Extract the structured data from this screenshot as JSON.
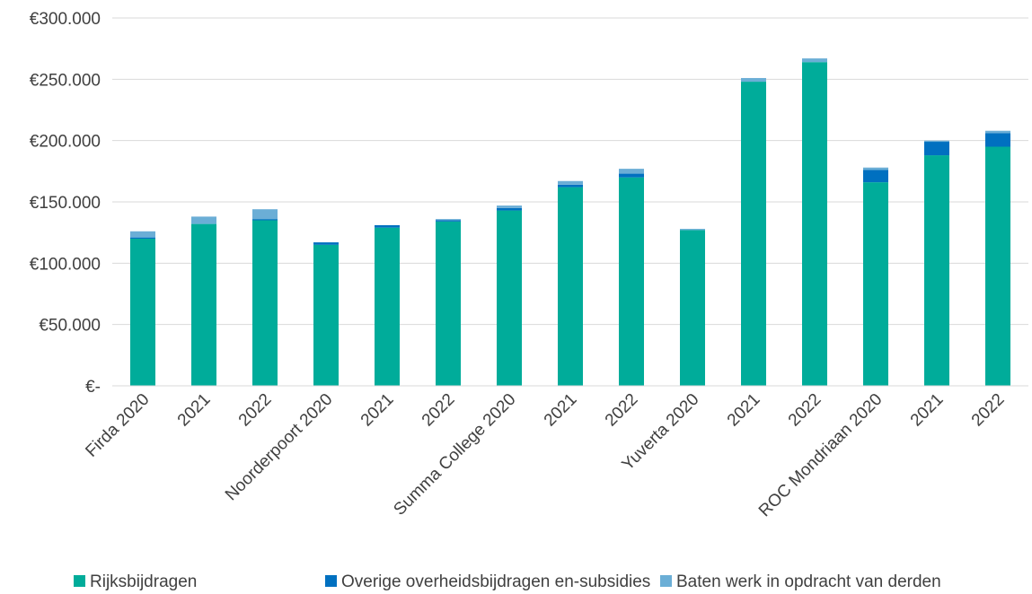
{
  "chart_data": {
    "type": "bar",
    "stacked": true,
    "categories": [
      "Firda 2020",
      "2021",
      "2022",
      "Noorderpoort 2020",
      "2021",
      "2022",
      "Summa College 2020",
      "2021",
      "2022",
      "Yuverta 2020",
      "2021",
      "2022",
      "ROC Mondriaan 2020",
      "2021",
      "2022"
    ],
    "series": [
      {
        "name": "Rijksbijdragen",
        "color": "#00AC9A",
        "values": [
          120000,
          132000,
          135000,
          115000,
          129000,
          134000,
          143000,
          162000,
          170000,
          127000,
          248000,
          264000,
          166000,
          188000,
          195000
        ]
      },
      {
        "name": "Overige overheidsbijdragen en-subsidies",
        "color": "#0070C0",
        "values": [
          1000,
          0,
          1000,
          2000,
          2000,
          1000,
          2000,
          2000,
          3000,
          0,
          0,
          0,
          10000,
          11000,
          11000
        ]
      },
      {
        "name": "Baten werk in opdracht van derden",
        "color": "#6BAED6",
        "values": [
          5000,
          6000,
          8000,
          0,
          0,
          1000,
          2000,
          3000,
          4000,
          1000,
          3000,
          3000,
          2000,
          1000,
          2000
        ]
      }
    ],
    "ylim": [
      0,
      300000
    ],
    "yticks": [
      0,
      50000,
      100000,
      150000,
      200000,
      250000,
      300000
    ],
    "ytick_labels": [
      "€-",
      "€50.000",
      "€100.000",
      "€150.000",
      "€200.000",
      "€250.000",
      "€300.000"
    ],
    "title": "",
    "xlabel": "",
    "ylabel": "",
    "grid": true,
    "legend_position": "bottom"
  }
}
